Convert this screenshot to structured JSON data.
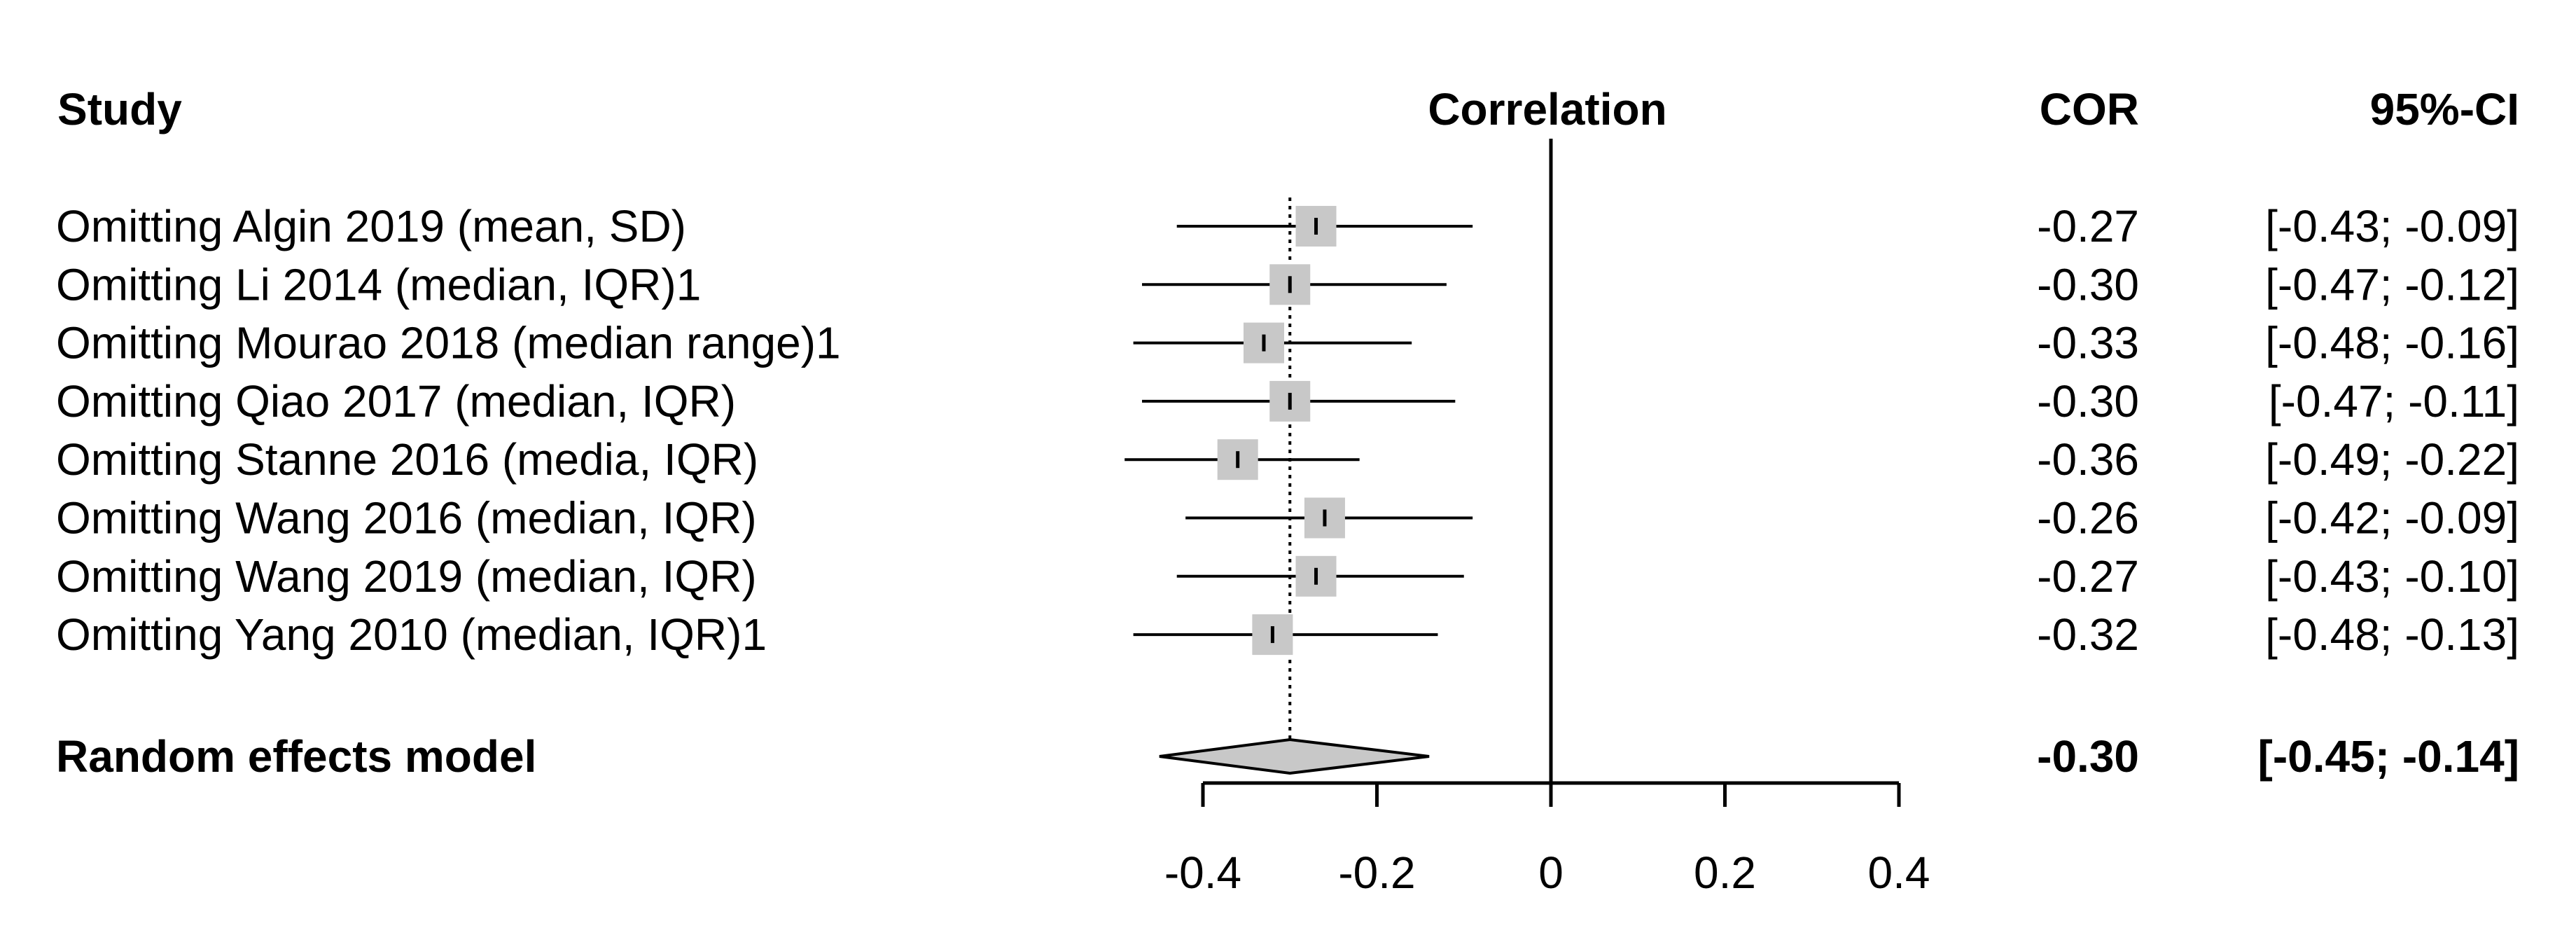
{
  "chart_data": {
    "type": "forest",
    "headers": {
      "study": "Study",
      "axis_title": "Correlation",
      "estimate": "COR",
      "ci": "95%-CI"
    },
    "studies": [
      {
        "label": "Omitting Algin 2019 (mean, SD)",
        "est": -0.27,
        "lo": -0.43,
        "hi": -0.09,
        "est_text": "-0.27",
        "ci_text": "[-0.43; -0.09]"
      },
      {
        "label": "Omitting Li 2014 (median, IQR)1",
        "est": -0.3,
        "lo": -0.47,
        "hi": -0.12,
        "est_text": "-0.30",
        "ci_text": "[-0.47; -0.12]"
      },
      {
        "label": "Omitting Mourao 2018 (median range)1",
        "est": -0.33,
        "lo": -0.48,
        "hi": -0.16,
        "est_text": "-0.33",
        "ci_text": "[-0.48; -0.16]"
      },
      {
        "label": "Omitting Qiao 2017 (median, IQR)",
        "est": -0.3,
        "lo": -0.47,
        "hi": -0.11,
        "est_text": "-0.30",
        "ci_text": "[-0.47; -0.11]"
      },
      {
        "label": "Omitting Stanne 2016 (media, IQR)",
        "est": -0.36,
        "lo": -0.49,
        "hi": -0.22,
        "est_text": "-0.36",
        "ci_text": "[-0.49; -0.22]"
      },
      {
        "label": "Omitting Wang 2016 (median, IQR)",
        "est": -0.26,
        "lo": -0.42,
        "hi": -0.09,
        "est_text": "-0.26",
        "ci_text": "[-0.42; -0.09]"
      },
      {
        "label": "Omitting Wang 2019 (median, IQR)",
        "est": -0.27,
        "lo": -0.43,
        "hi": -0.1,
        "est_text": "-0.27",
        "ci_text": "[-0.43; -0.10]"
      },
      {
        "label": "Omitting Yang 2010 (median, IQR)1",
        "est": -0.32,
        "lo": -0.48,
        "hi": -0.13,
        "est_text": "-0.32",
        "ci_text": "[-0.48; -0.13]"
      }
    ],
    "summary": {
      "label": "Random effects model",
      "est": -0.3,
      "lo": -0.45,
      "hi": -0.14,
      "est_text": "-0.30",
      "ci_text": "[-0.45; -0.14]"
    },
    "xlim": [
      -0.4,
      0.4
    ],
    "ticks": [
      -0.4,
      -0.2,
      0,
      0.2,
      0.4
    ],
    "tick_labels": [
      "-0.4",
      "-0.2",
      "0",
      "0.2",
      "0.4"
    ],
    "null_line": 0,
    "summary_line": -0.3
  },
  "colors": {
    "box": "#c8c8c8",
    "diamond": "#c8c8c8",
    "line": "#000000"
  }
}
